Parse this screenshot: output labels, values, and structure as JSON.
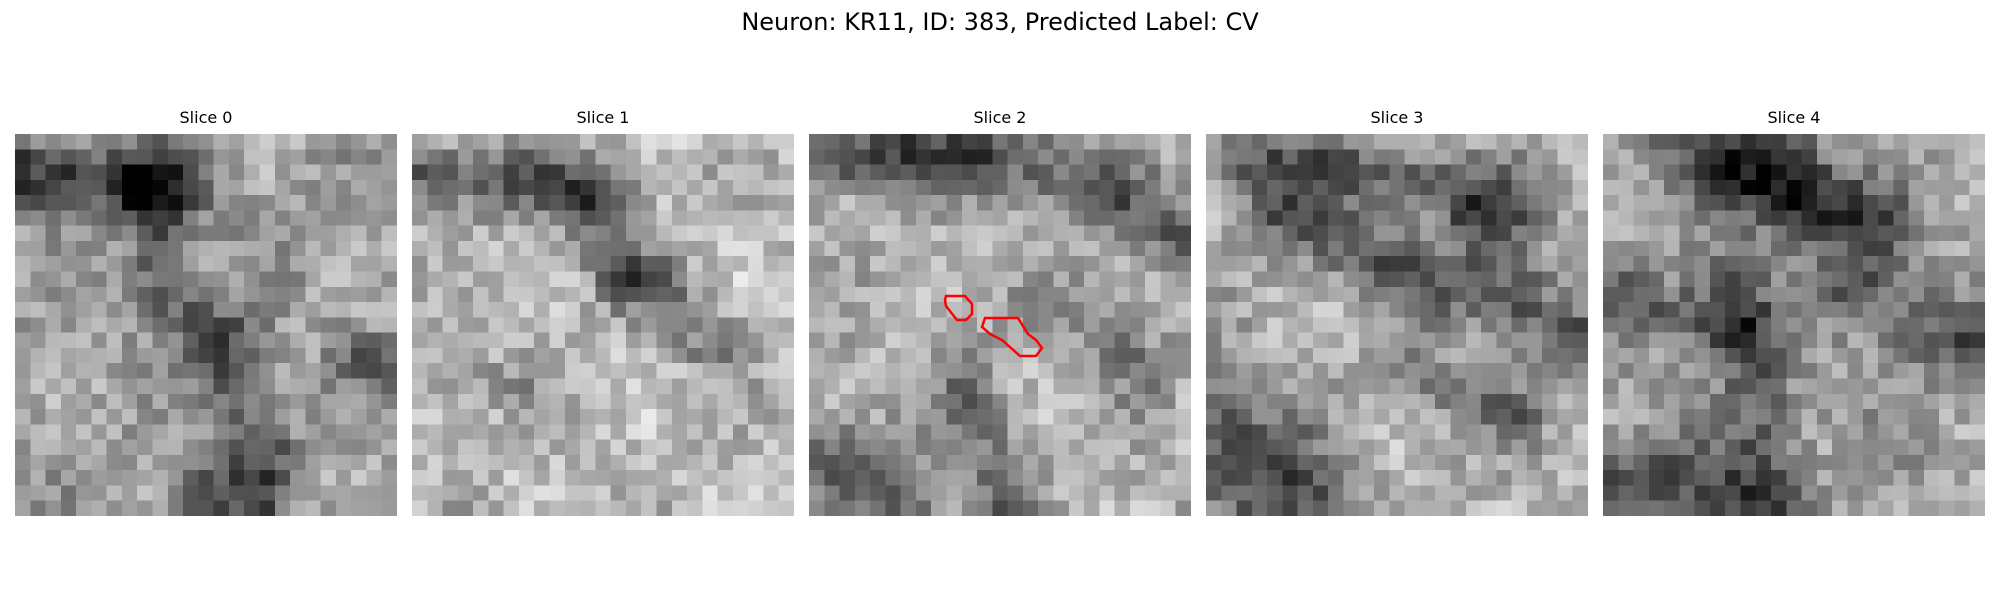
{
  "figure": {
    "title": "Neuron: KR11, ID: 383, Predicted Label: CV"
  },
  "slices": [
    {
      "title": "Slice 0",
      "has_contour": false
    },
    {
      "title": "Slice 1",
      "has_contour": false
    },
    {
      "title": "Slice 2",
      "has_contour": true
    },
    {
      "title": "Slice 3",
      "has_contour": false
    },
    {
      "title": "Slice 4",
      "has_contour": false
    }
  ],
  "colors": {
    "contour": "#ff0000",
    "background": "#ffffff"
  },
  "image_style": "grayscale pixel grid"
}
